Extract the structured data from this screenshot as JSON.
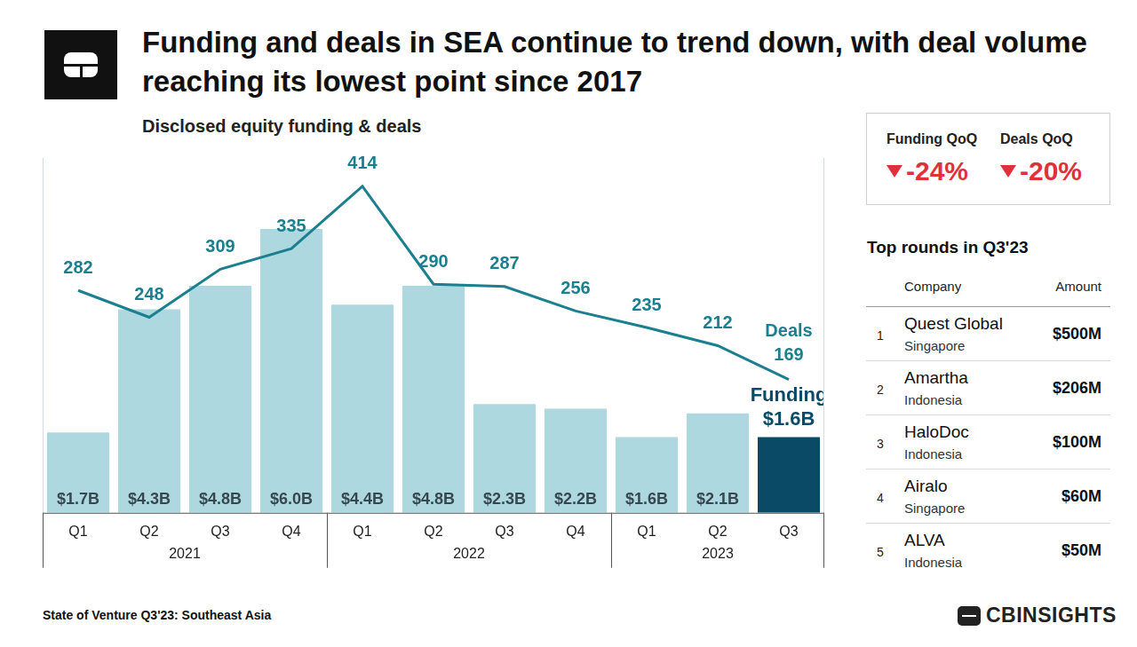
{
  "chart_data": {
    "type": "bar",
    "title": "Funding and deals in SEA continue to trend down, with deal volume reaching its lowest point since 2017",
    "subtitle": "Disclosed equity funding & deals",
    "categories": [
      "Q1",
      "Q2",
      "Q3",
      "Q4",
      "Q1",
      "Q2",
      "Q3",
      "Q4",
      "Q1",
      "Q2",
      "Q3"
    ],
    "groups": [
      "2021",
      "2021",
      "2021",
      "2021",
      "2022",
      "2022",
      "2022",
      "2022",
      "2023",
      "2023",
      "2023"
    ],
    "series": [
      {
        "name": "Funding",
        "type": "bar",
        "colors": [
          "#aed8e0",
          "#aed8e0",
          "#aed8e0",
          "#aed8e0",
          "#aed8e0",
          "#aed8e0",
          "#aed8e0",
          "#aed8e0",
          "#aed8e0",
          "#aed8e0",
          "#0b4a66"
        ],
        "values": [
          1.7,
          4.3,
          4.8,
          6.0,
          4.4,
          4.8,
          2.3,
          2.2,
          1.6,
          2.1,
          1.6
        ],
        "value_labels": [
          "$1.7B",
          "$4.3B",
          "$4.8B",
          "$6.0B",
          "$4.4B",
          "$4.8B",
          "$2.3B",
          "$2.2B",
          "$1.6B",
          "$2.1B",
          "$1.6B"
        ]
      },
      {
        "name": "Deals",
        "type": "line",
        "axis": "y2",
        "color": "#1b7f90",
        "values": [
          282,
          248,
          309,
          335,
          414,
          290,
          287,
          256,
          235,
          212,
          169
        ]
      }
    ],
    "ylim": [
      0,
      7.5
    ],
    "y2lim": [
      0,
      450
    ],
    "grid": false,
    "data_labels": true,
    "tick_labels": "x"
  },
  "kpis": [
    {
      "label": "Funding QoQ",
      "value": "-24%"
    },
    {
      "label": "Deals QoQ",
      "value": "-20%"
    }
  ],
  "top_rounds": {
    "title": "Top rounds in Q3'23",
    "columns": [
      "Company",
      "Amount"
    ],
    "rows": [
      {
        "rank": 1,
        "company": "Quest Global",
        "country": "Singapore",
        "amount": "$500M"
      },
      {
        "rank": 2,
        "company": "Amartha",
        "country": "Indonesia",
        "amount": "$206M"
      },
      {
        "rank": 3,
        "company": "HaloDoc",
        "country": "Indonesia",
        "amount": "$100M"
      },
      {
        "rank": 4,
        "company": "Airalo",
        "country": "Singapore",
        "amount": "$60M"
      },
      {
        "rank": 5,
        "company": "ALVA",
        "country": "Indonesia",
        "amount": "$50M"
      }
    ]
  },
  "footer": {
    "source": "State of Venture Q3'23: Southeast Asia",
    "logo": "CBINSIGHTS"
  }
}
